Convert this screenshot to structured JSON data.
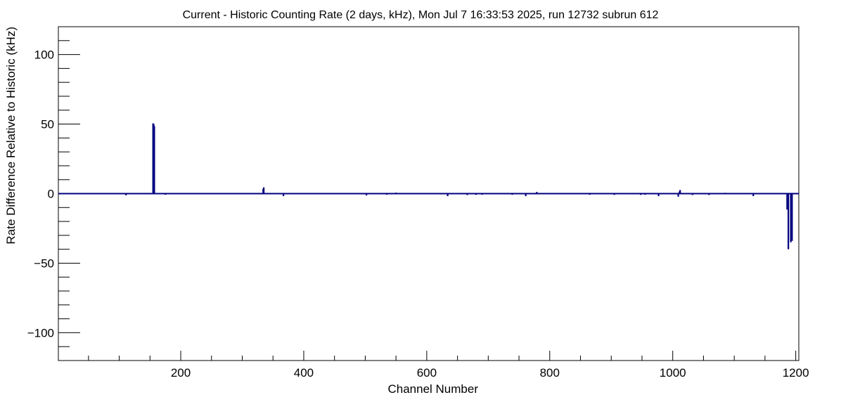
{
  "chart_data": {
    "type": "bar",
    "title": "Current - Historic Counting Rate (2 days, kHz), Mon Jul  7 16:33:53 2025, run 12732 subrun 612",
    "xlabel": "Channel Number",
    "ylabel": "Rate Difference Relative to Historic (kHz)",
    "xlim": [
      1,
      1205
    ],
    "ylim": [
      -120,
      120
    ],
    "x_ticks": [
      200,
      400,
      600,
      800,
      1000,
      1200
    ],
    "y_ticks": [
      -100,
      -50,
      0,
      50,
      100
    ],
    "grid": false,
    "line_color": "#00007f",
    "series": [
      {
        "points": [
          [
            111,
            -1.2
          ],
          [
            155,
            50.5
          ],
          [
            156,
            50.0
          ],
          [
            157,
            48.5
          ],
          [
            175,
            -0.8
          ],
          [
            334,
            3.5
          ],
          [
            335,
            4.5
          ],
          [
            367,
            -1.8
          ],
          [
            502,
            -1.3
          ],
          [
            535,
            -0.8
          ],
          [
            550,
            0.7
          ],
          [
            634,
            -1.8
          ],
          [
            666,
            -1.0
          ],
          [
            680,
            -0.9
          ],
          [
            690,
            -0.8
          ],
          [
            739,
            -0.8
          ],
          [
            761,
            -1.8
          ],
          [
            779,
            1.2
          ],
          [
            865,
            -0.8
          ],
          [
            905,
            -0.9
          ],
          [
            948,
            -0.9
          ],
          [
            955,
            -0.8
          ],
          [
            977,
            -1.8
          ],
          [
            1009,
            -2.2
          ],
          [
            1011,
            1.5
          ],
          [
            1012,
            2.6
          ],
          [
            1032,
            -1.0
          ],
          [
            1059,
            -1.0
          ],
          [
            1085,
            0.6
          ],
          [
            1131,
            -1.8
          ],
          [
            1186,
            -11.5
          ],
          [
            1188,
            -40.0
          ],
          [
            1192,
            -35.0
          ],
          [
            1194,
            -34.0
          ]
        ]
      }
    ]
  }
}
